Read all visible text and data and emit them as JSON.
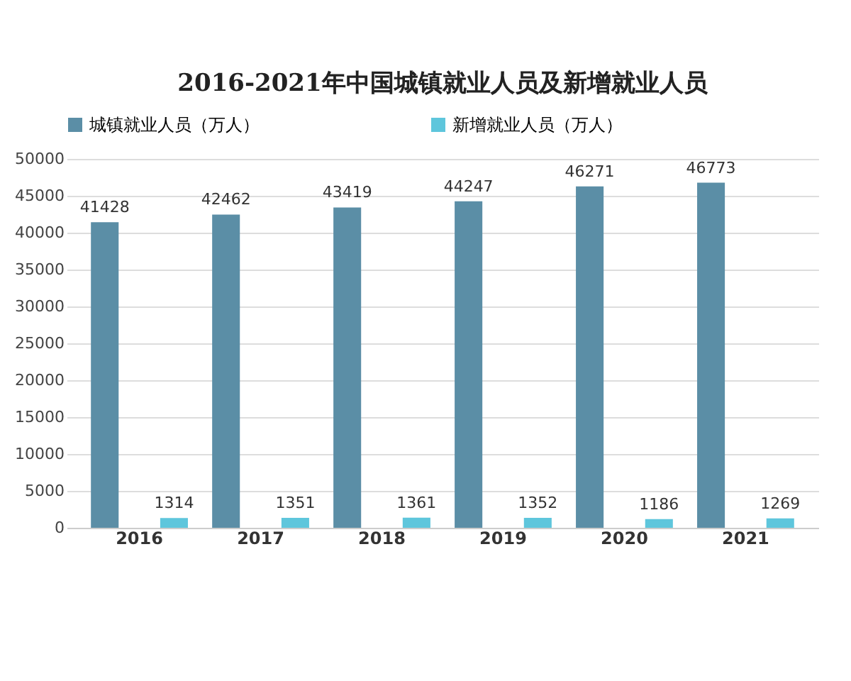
{
  "chart_data": {
    "type": "bar",
    "title": "2016-2021年中国城镇就业人员及新增就业人员",
    "categories": [
      "2016",
      "2017",
      "2018",
      "2019",
      "2020",
      "2021"
    ],
    "series": [
      {
        "name": "城镇就业人员（万人）",
        "color": "#5b8ea6",
        "values": [
          41428,
          42462,
          43419,
          44247,
          46271,
          46773
        ]
      },
      {
        "name": "新增就业人员（万人）",
        "color": "#5ec6dc",
        "values": [
          1314,
          1351,
          1361,
          1352,
          1186,
          1269
        ]
      }
    ],
    "ylim": [
      0,
      50000
    ],
    "yticks": [
      0,
      5000,
      10000,
      15000,
      20000,
      25000,
      30000,
      35000,
      40000,
      45000,
      50000
    ],
    "grid": "y",
    "legend": "top",
    "data_labels": true
  }
}
